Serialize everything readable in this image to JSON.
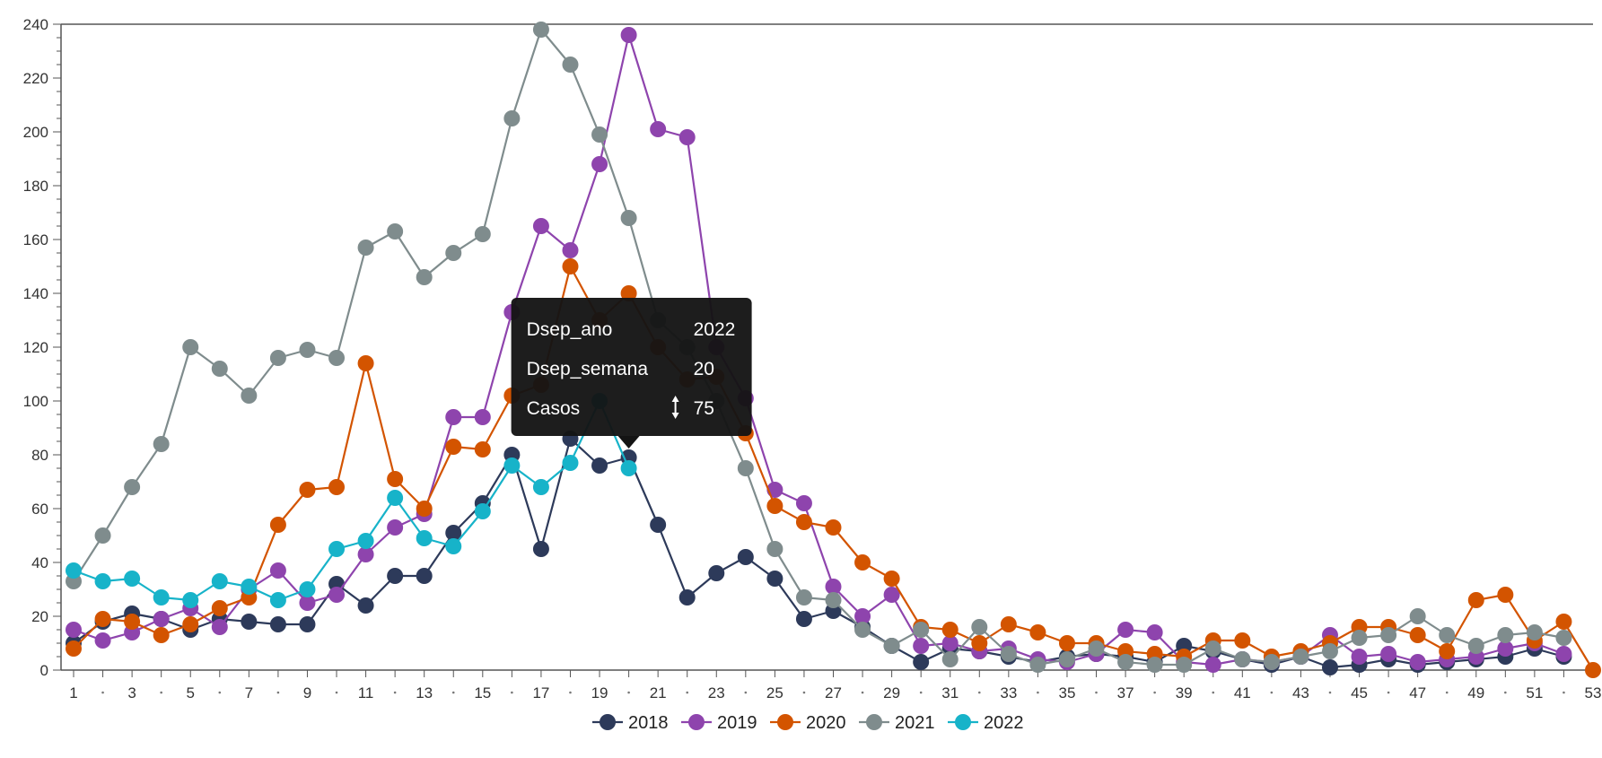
{
  "chart_data": {
    "type": "line",
    "title": "",
    "xlabel": "",
    "ylabel": "",
    "ylim": [
      0,
      240
    ],
    "xlim": [
      1,
      53
    ],
    "y_ticks": [
      0,
      20,
      40,
      60,
      80,
      100,
      120,
      140,
      160,
      180,
      200,
      220,
      240
    ],
    "x_tick_labels": [
      1,
      3,
      5,
      7,
      9,
      11,
      13,
      15,
      17,
      19,
      21,
      23,
      25,
      27,
      29,
      31,
      33,
      35,
      37,
      39,
      41,
      43,
      45,
      47,
      49,
      51,
      53
    ],
    "grid": false,
    "legend_position": "bottom-center",
    "series": [
      {
        "name": "2018",
        "color": "#2d3a5a",
        "x": [
          1,
          2,
          3,
          4,
          5,
          6,
          7,
          8,
          9,
          10,
          11,
          12,
          13,
          14,
          15,
          16,
          17,
          18,
          19,
          20,
          21,
          22,
          23,
          24,
          25,
          26,
          27,
          28,
          29,
          30,
          31,
          32,
          33,
          34,
          35,
          36,
          37,
          38,
          39,
          40,
          41,
          42,
          43,
          44,
          45,
          46,
          47,
          48,
          49,
          50,
          51,
          52
        ],
        "values": [
          10,
          18,
          21,
          19,
          15,
          19,
          18,
          17,
          17,
          32,
          24,
          35,
          35,
          51,
          62,
          80,
          45,
          86,
          76,
          79,
          54,
          27,
          36,
          42,
          34,
          19,
          22,
          16,
          9,
          3,
          8,
          7,
          5,
          3,
          5,
          6,
          5,
          3,
          9,
          7,
          4,
          2,
          5,
          1,
          2,
          4,
          2,
          3,
          4,
          5,
          8,
          5
        ]
      },
      {
        "name": "2019",
        "color": "#8e44ad",
        "x": [
          1,
          2,
          3,
          4,
          5,
          6,
          7,
          8,
          9,
          10,
          11,
          12,
          13,
          14,
          15,
          16,
          17,
          18,
          19,
          20,
          21,
          22,
          23,
          24,
          25,
          26,
          27,
          28,
          29,
          30,
          31,
          32,
          33,
          34,
          35,
          36,
          37,
          38,
          39,
          40,
          41,
          42,
          43,
          44,
          45,
          46,
          47,
          48,
          49,
          50,
          51,
          52
        ],
        "values": [
          15,
          11,
          14,
          19,
          23,
          16,
          30,
          37,
          25,
          28,
          43,
          53,
          58,
          94,
          94,
          133,
          165,
          156,
          188,
          236,
          201,
          198,
          120,
          101,
          67,
          62,
          31,
          20,
          28,
          9,
          10,
          7,
          8,
          4,
          3,
          6,
          15,
          14,
          3,
          2,
          4,
          3,
          5,
          13,
          5,
          6,
          3,
          4,
          5,
          8,
          10,
          6
        ]
      },
      {
        "name": "2020",
        "color": "#d35400",
        "x": [
          1,
          2,
          3,
          4,
          5,
          6,
          7,
          8,
          9,
          10,
          11,
          12,
          13,
          14,
          15,
          16,
          17,
          18,
          19,
          20,
          21,
          22,
          23,
          24,
          25,
          26,
          27,
          28,
          29,
          30,
          31,
          32,
          33,
          34,
          35,
          36,
          37,
          38,
          39,
          40,
          41,
          42,
          43,
          44,
          45,
          46,
          47,
          48,
          49,
          50,
          51,
          52,
          53
        ],
        "values": [
          8,
          19,
          18,
          13,
          17,
          23,
          27,
          54,
          67,
          68,
          114,
          71,
          60,
          83,
          82,
          102,
          106,
          150,
          130,
          140,
          120,
          108,
          109,
          88,
          61,
          55,
          53,
          40,
          34,
          16,
          15,
          10,
          17,
          14,
          10,
          10,
          7,
          6,
          5,
          11,
          11,
          5,
          7,
          10,
          16,
          16,
          13,
          7,
          26,
          28,
          11,
          18,
          0
        ]
      },
      {
        "name": "2021",
        "color": "#7f8c8d",
        "x": [
          1,
          2,
          3,
          4,
          5,
          6,
          7,
          8,
          9,
          10,
          11,
          12,
          13,
          14,
          15,
          16,
          17,
          18,
          19,
          20,
          21,
          22,
          23,
          24,
          25,
          26,
          27,
          28,
          29,
          30,
          31,
          32,
          33,
          34,
          35,
          36,
          37,
          38,
          39,
          40,
          41,
          42,
          43,
          44,
          45,
          46,
          47,
          48,
          49,
          50,
          51,
          52
        ],
        "values": [
          33,
          50,
          68,
          84,
          120,
          112,
          102,
          116,
          119,
          116,
          157,
          163,
          146,
          155,
          162,
          205,
          238,
          225,
          199,
          168,
          130,
          120,
          100,
          75,
          45,
          27,
          26,
          15,
          9,
          15,
          4,
          16,
          6,
          2,
          4,
          8,
          3,
          2,
          2,
          8,
          4,
          3,
          5,
          7,
          12,
          13,
          20,
          13,
          9,
          13,
          14,
          12
        ]
      },
      {
        "name": "2022",
        "color": "#17b3c9",
        "x": [
          1,
          2,
          3,
          4,
          5,
          6,
          7,
          8,
          9,
          10,
          11,
          12,
          13,
          14,
          15,
          16,
          17,
          18,
          19,
          20
        ],
        "values": [
          37,
          33,
          34,
          27,
          26,
          33,
          31,
          26,
          30,
          45,
          48,
          64,
          49,
          46,
          59,
          76,
          68,
          77,
          100,
          75
        ]
      }
    ],
    "tooltip": {
      "rows": [
        {
          "label": "Dsep_ano",
          "value": "2022"
        },
        {
          "label": "Dsep_semana",
          "value": "20"
        },
        {
          "label": "Casos",
          "value": "75"
        }
      ],
      "anchor_series": "2022",
      "anchor_x": 20
    }
  }
}
